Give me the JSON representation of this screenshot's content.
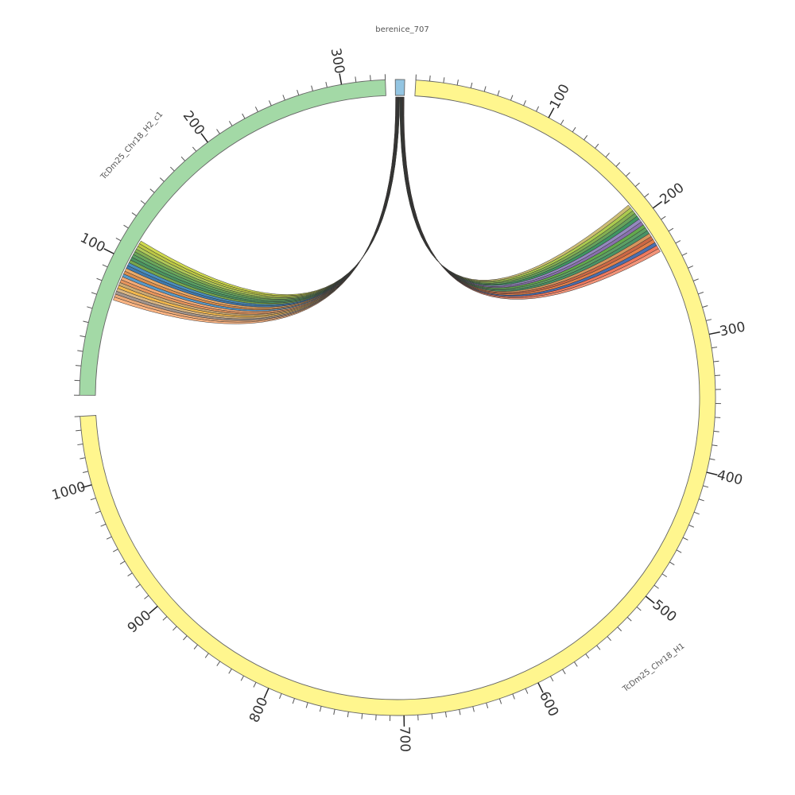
{
  "segments": [
    {
      "id": "berenice",
      "name": "berenice_707",
      "length": 20,
      "color": "#93c5e2",
      "ticks": false
    },
    {
      "id": "h1",
      "name": "TcDm25_Chr18_H1",
      "length": 1050,
      "color": "#fff68e",
      "ticks": true
    },
    {
      "id": "h2",
      "name": "TcDm25_Chr18_H2_c1",
      "length": 330,
      "color": "#a3d9a6",
      "ticks": true
    }
  ],
  "tick_labels": {
    "h1": [
      "100",
      "200",
      "300",
      "400",
      "500",
      "600",
      "700",
      "800",
      "900",
      "1000"
    ],
    "h2": [
      "100",
      "200",
      "300"
    ]
  },
  "link_colors": {
    "h1": [
      "#c9b968",
      "#a4c640",
      "#7aa843",
      "#5a9a4e",
      "#2f8c55",
      "#8a7fb8",
      "#7e64a5",
      "#56a23e",
      "#4f9758",
      "#3a8a5a",
      "#d38b4e",
      "#c65a35",
      "#e0743b",
      "#3b63a8",
      "#ef6e50",
      "#f28b6e"
    ],
    "h2": [
      "#cbd640",
      "#b6c235",
      "#a9c44a",
      "#7aa843",
      "#5ea04d",
      "#4c9a58",
      "#3b8a55",
      "#6b9f3e",
      "#3b86b8",
      "#2f6fa8",
      "#e8a35c",
      "#d9843f",
      "#4c91c4",
      "#f3a36a",
      "#e58c4f",
      "#c7a36a",
      "#f2b23e",
      "#d7b07a",
      "#9c8d86",
      "#e9a26d",
      "#ffb07a"
    ]
  }
}
